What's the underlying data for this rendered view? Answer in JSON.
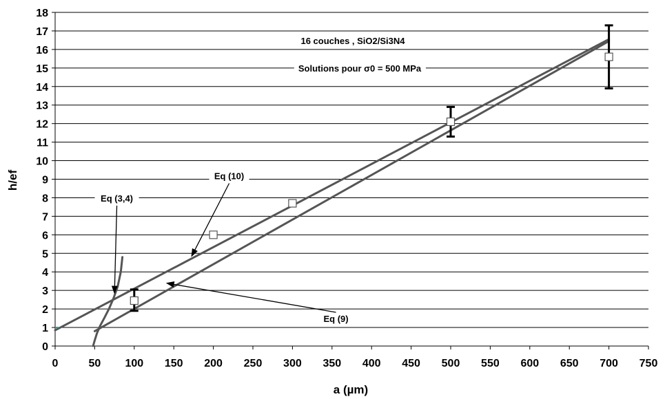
{
  "chart_data": {
    "type": "line",
    "title": "16 couches , SiO2/Si3N4",
    "subtitle": "Solutions pour σ0 = 500 MPa",
    "xlabel": "a (µm)",
    "ylabel": "h/ef",
    "xlim": [
      0,
      750
    ],
    "ylim": [
      0,
      18
    ],
    "xticks": [
      0,
      50,
      100,
      150,
      200,
      250,
      300,
      350,
      400,
      450,
      500,
      550,
      600,
      650,
      700,
      750
    ],
    "yticks": [
      0,
      1,
      2,
      3,
      4,
      5,
      6,
      7,
      8,
      9,
      10,
      11,
      12,
      13,
      14,
      15,
      16,
      17,
      18
    ],
    "grid": "horizontal",
    "series": [
      {
        "name": "Eq (10)",
        "kind": "line",
        "color": "#555555",
        "x": [
          0,
          700
        ],
        "y": [
          0.85,
          16.55
        ]
      },
      {
        "name": "Eq (9)",
        "kind": "line",
        "color": "#555555",
        "x": [
          50,
          700
        ],
        "y": [
          0.8,
          16.45
        ]
      },
      {
        "name": "Eq (3,4)",
        "kind": "curve",
        "color": "#555555",
        "x": [
          48,
          50,
          53,
          57,
          62,
          68,
          74,
          79,
          83,
          85
        ],
        "y": [
          0,
          0.3,
          0.7,
          1.1,
          1.5,
          2.0,
          2.6,
          3.2,
          4.0,
          4.8
        ]
      },
      {
        "name": "",
        "kind": "markers",
        "marker": "square",
        "x": [
          100,
          200,
          300,
          500,
          700
        ],
        "y": [
          2.45,
          6.0,
          7.7,
          12.1,
          15.6
        ],
        "error_low": [
          1.9,
          null,
          7.55,
          11.3,
          13.9
        ],
        "error_high": [
          3.05,
          null,
          7.85,
          12.9,
          17.3
        ]
      }
    ],
    "annotations": [
      {
        "text": "Eq (10)",
        "label_x": 220,
        "label_y": 9.0,
        "arrow_x": 172,
        "arrow_y": 4.8
      },
      {
        "text": "Eq (9)",
        "label_x": 355,
        "label_y": 1.3,
        "arrow_x": 140,
        "arrow_y": 3.4
      },
      {
        "text": "Eq (3,4)",
        "label_x": 78,
        "label_y": 7.8,
        "arrow_x": 75,
        "arrow_y": 2.8
      }
    ]
  }
}
